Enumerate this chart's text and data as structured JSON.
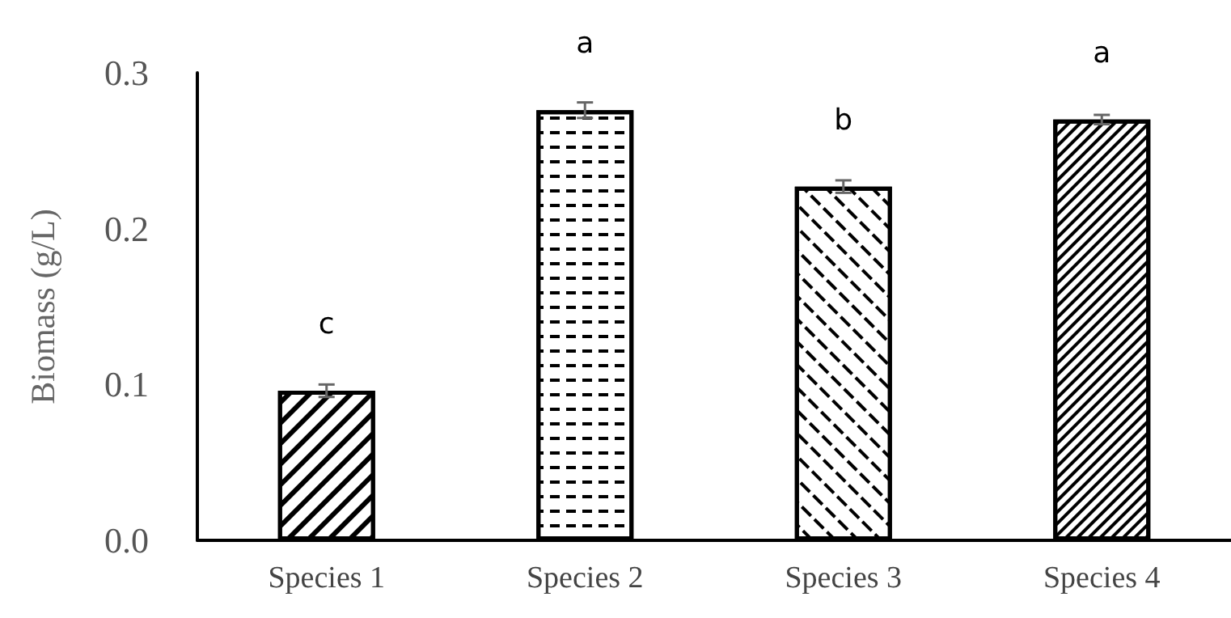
{
  "chart_data": {
    "type": "bar",
    "ylabel": "Biomass (g/L)",
    "categories": [
      "Species 1",
      "Species 2",
      "Species 3",
      "Species 4"
    ],
    "values": [
      0.096,
      0.276,
      0.227,
      0.27
    ],
    "errors": [
      0.004,
      0.005,
      0.004,
      0.003
    ],
    "value_labels": [
      "c",
      "a",
      "b",
      "a"
    ],
    "color": "#000000",
    "ylim": [
      0,
      0.3
    ],
    "yticks": [
      {
        "value": 0,
        "label": "0.0"
      },
      0.1,
      0.2,
      0.3
    ],
    "grid": false
  }
}
